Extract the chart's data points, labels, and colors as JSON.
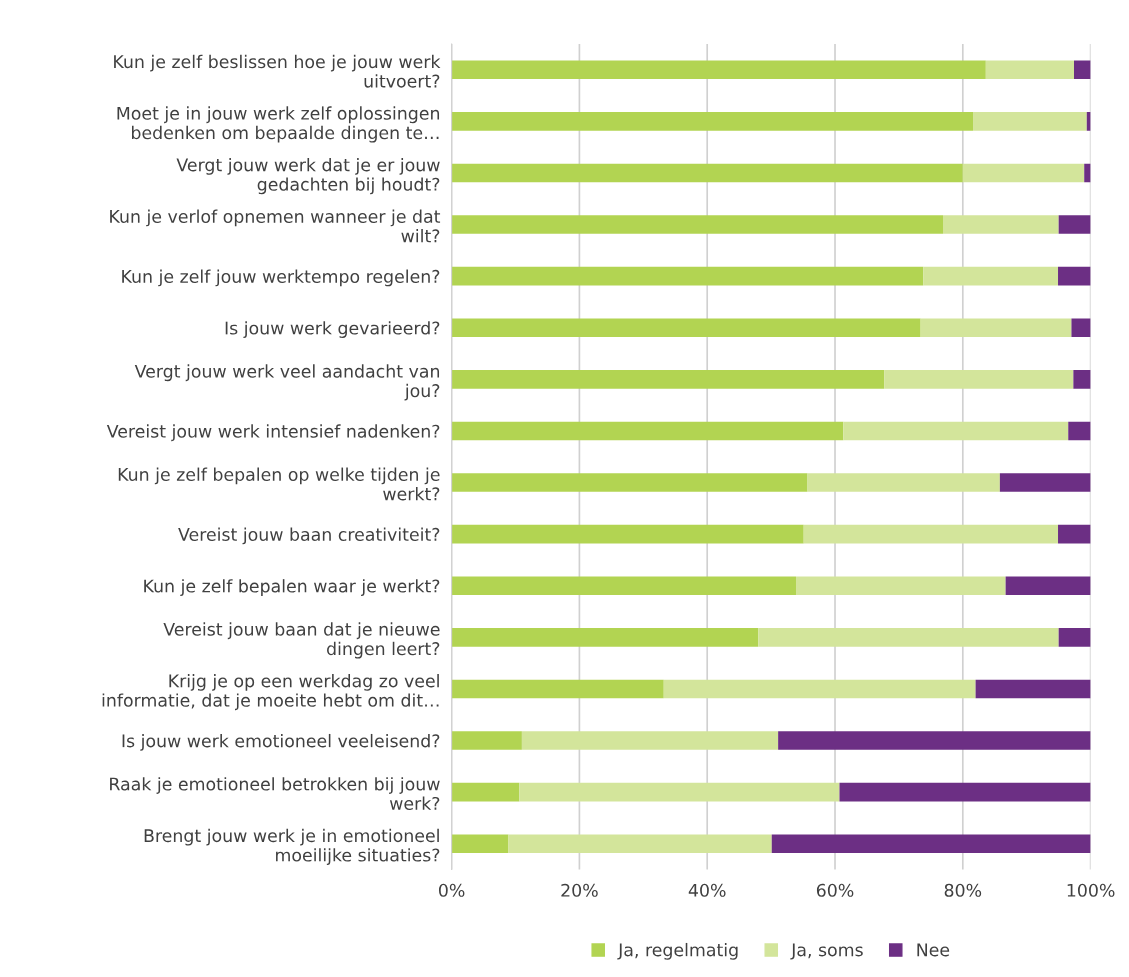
{
  "chart_data": {
    "type": "bar",
    "orientation": "horizontal",
    "stacked": true,
    "categories": [
      "Kun je zelf beslissen hoe je jouw werk\nuitvoert?",
      "Moet je in jouw werk zelf oplossingen\nbedenken om bepaalde dingen te…",
      "Vergt jouw werk dat je er jouw\ngedachten bij houdt?",
      "Kun je verlof opnemen wanneer je dat\nwilt?",
      "Kun je zelf jouw werktempo regelen?",
      "Is jouw werk gevarieerd?",
      "Vergt jouw werk veel aandacht van\njou?",
      "Vereist jouw werk intensief nadenken?",
      "Kun je zelf bepalen op welke tijden je\nwerkt?",
      "Vereist jouw baan creativiteit?",
      "Kun je zelf bepalen waar je werkt?",
      "Vereist jouw baan dat je nieuwe\ndingen leert?",
      "Krijg je op een werkdag zo veel\ninformatie, dat je moeite hebt om dit…",
      "Is jouw werk emotioneel veeleisend?",
      "Raak je emotioneel betrokken bij jouw\nwerk?",
      "Brengt jouw werk je in emotioneel\nmoeilijke situaties?"
    ],
    "series": [
      {
        "name": "Ja, regelmatig",
        "color": "#b2d452",
        "values": [
          83.6,
          81.6,
          80,
          76.9,
          73.8,
          73.4,
          67.7,
          61.3,
          55.7,
          55.1,
          53.9,
          48,
          33.2,
          11,
          10.6,
          8.9
        ]
      },
      {
        "name": "Ja, soms",
        "color": "#d3e59b",
        "values": [
          13.8,
          17.8,
          19,
          18.1,
          21.1,
          23.6,
          29.6,
          35.2,
          30.1,
          39.8,
          32.8,
          47,
          48.8,
          40.1,
          50.1,
          41.2
        ]
      },
      {
        "name": "Nee",
        "color": "#6c2f84",
        "values": [
          2.6,
          0.6,
          1,
          5,
          5.1,
          3,
          2.7,
          3.5,
          14.2,
          5.1,
          13.3,
          5,
          18,
          48.9,
          39.3,
          49.9
        ]
      }
    ],
    "xlim": [
      0,
      100
    ],
    "xticks": [
      {
        "value": 0,
        "label": "0%"
      },
      {
        "value": 20,
        "label": "20%"
      },
      {
        "value": 40,
        "label": "40%"
      },
      {
        "value": 60,
        "label": "60%"
      },
      {
        "value": 80,
        "label": "80%"
      },
      {
        "value": 100,
        "label": "100%"
      }
    ],
    "grid": "x",
    "legend": "bottom"
  }
}
